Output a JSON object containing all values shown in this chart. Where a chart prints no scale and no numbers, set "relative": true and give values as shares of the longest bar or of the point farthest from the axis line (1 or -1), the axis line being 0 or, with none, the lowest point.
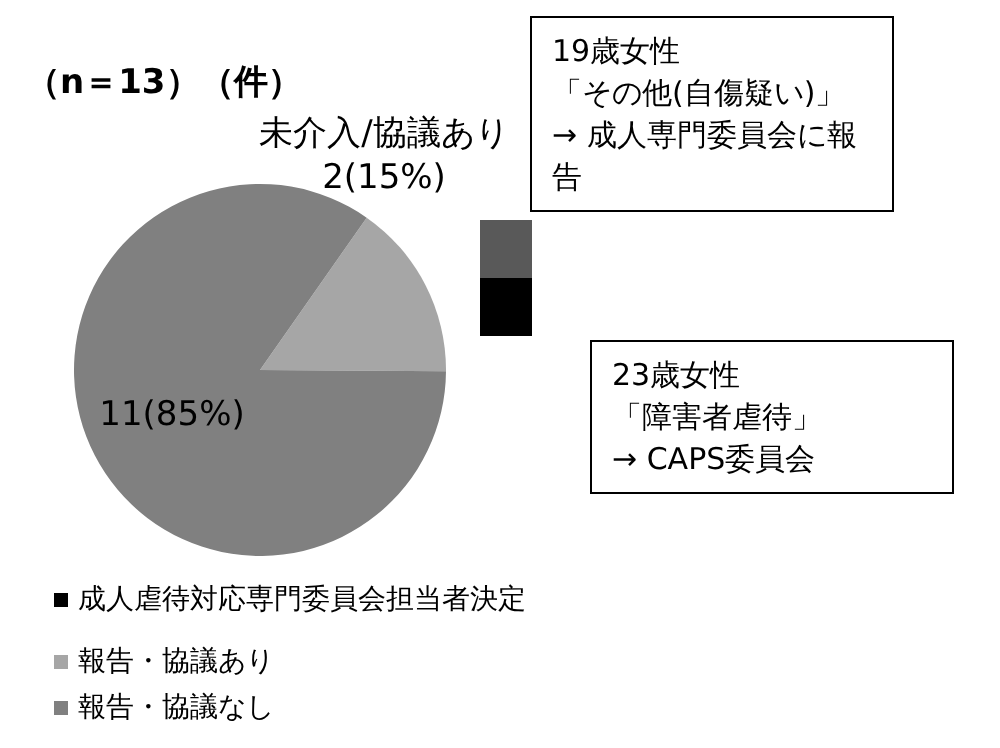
{
  "chart_data": [
    {
      "type": "pie",
      "title": "（n＝13）（件）",
      "categories": [
        "報告・協議あり",
        "報告・協議なし"
      ],
      "values": [
        2,
        11
      ],
      "colors": [
        "#a6a6a6",
        "#808080"
      ],
      "value_labels": [
        "未介入/協議あり\n2(15%)",
        "11(85%)"
      ],
      "legend": "bottom"
    },
    {
      "type": "bar",
      "stacked": true,
      "relative": true,
      "categories": [
        null
      ],
      "series": [
        {
          "name": "成人虐待対応専門委員会担当者決定",
          "color": "#000000",
          "values": [
            0.5
          ]
        },
        {
          "color": "#595959",
          "values": [
            0.5
          ]
        }
      ],
      "annotations": [
        "19歳女性「その他(自傷疑い)」→ 成人専門委員会に報告",
        "23歳女性「障害者虐待」→ CAPS委員会"
      ],
      "legend": "bottom"
    }
  ]
}
